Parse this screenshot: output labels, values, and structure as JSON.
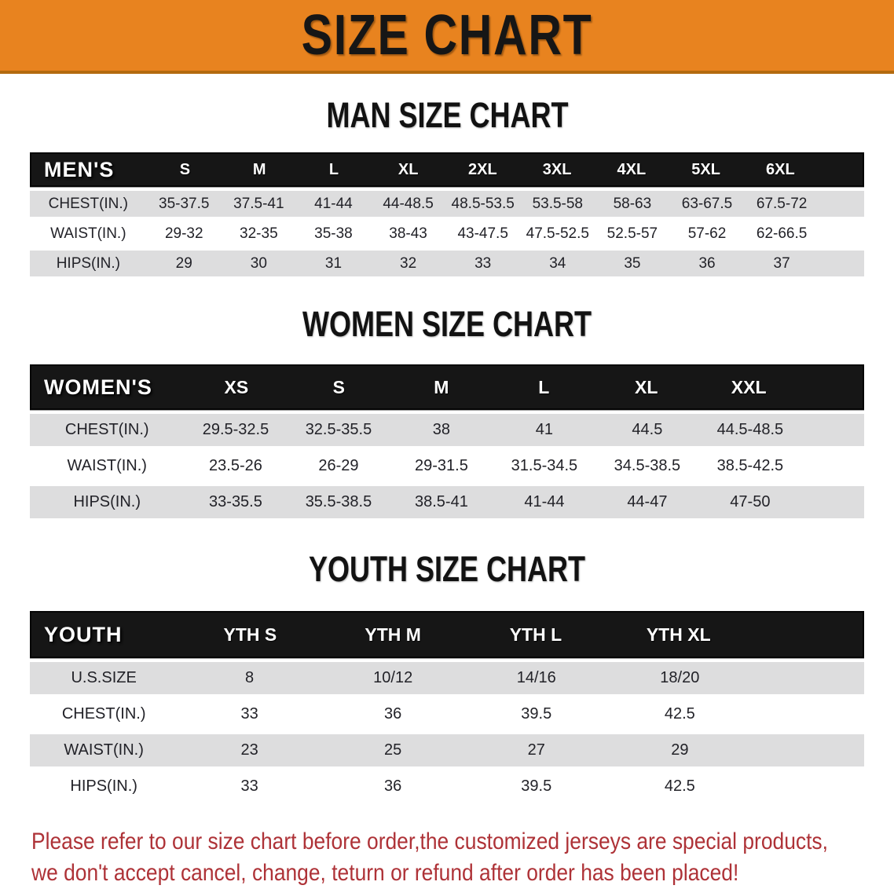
{
  "banner": {
    "title": "SIZE CHART"
  },
  "colors": {
    "banner_bg": "#E8831F",
    "banner_edge": "#B36A10",
    "header_bg": "#161616",
    "row_alt_bg": "#DDDDDE",
    "disclaimer_text": "#AE3237"
  },
  "tables": [
    {
      "title": "MAN SIZE CHART",
      "corner": "MEN'S",
      "columns": [
        "S",
        "M",
        "L",
        "XL",
        "2XL",
        "3XL",
        "4XL",
        "5XL",
        "6XL"
      ],
      "rows": [
        {
          "label": "CHEST(IN.)",
          "values": [
            "35-37.5",
            "37.5-41",
            "41-44",
            "44-48.5",
            "48.5-53.5",
            "53.5-58",
            "58-63",
            "63-67.5",
            "67.5-72"
          ]
        },
        {
          "label": "WAIST(IN.)",
          "values": [
            "29-32",
            "32-35",
            "35-38",
            "38-43",
            "43-47.5",
            "47.5-52.5",
            "52.5-57",
            "57-62",
            "62-66.5"
          ]
        },
        {
          "label": "HIPS(IN.)",
          "values": [
            "29",
            "30",
            "31",
            "32",
            "33",
            "34",
            "35",
            "36",
            "37"
          ]
        }
      ]
    },
    {
      "title": "WOMEN SIZE CHART",
      "corner": "WOMEN'S",
      "columns": [
        "XS",
        "S",
        "M",
        "L",
        "XL",
        "XXL"
      ],
      "rows": [
        {
          "label": "CHEST(IN.)",
          "values": [
            "29.5-32.5",
            "32.5-35.5",
            "38",
            "41",
            "44.5",
            "44.5-48.5"
          ]
        },
        {
          "label": "WAIST(IN.)",
          "values": [
            "23.5-26",
            "26-29",
            "29-31.5",
            "31.5-34.5",
            "34.5-38.5",
            "38.5-42.5"
          ]
        },
        {
          "label": "HIPS(IN.)",
          "values": [
            "33-35.5",
            "35.5-38.5",
            "38.5-41",
            "41-44",
            "44-47",
            "47-50"
          ]
        }
      ]
    },
    {
      "title": "YOUTH SIZE CHART",
      "corner": "YOUTH",
      "columns": [
        "YTH S",
        "YTH M",
        "YTH L",
        "YTH XL"
      ],
      "rows": [
        {
          "label": "U.S.SIZE",
          "values": [
            "8",
            "10/12",
            "14/16",
            "18/20"
          ]
        },
        {
          "label": "CHEST(IN.)",
          "values": [
            "33",
            "36",
            "39.5",
            "42.5"
          ]
        },
        {
          "label": "WAIST(IN.)",
          "values": [
            "23",
            "25",
            "27",
            "29"
          ]
        },
        {
          "label": "HIPS(IN.)",
          "values": [
            "33",
            "36",
            "39.5",
            "42.5"
          ]
        }
      ]
    }
  ],
  "disclaimer": {
    "line1": "Please refer to our size chart before order,the customized jerseys are special products,",
    "line2": "we don't accept cancel, change, teturn or refund after order has been placed!"
  }
}
